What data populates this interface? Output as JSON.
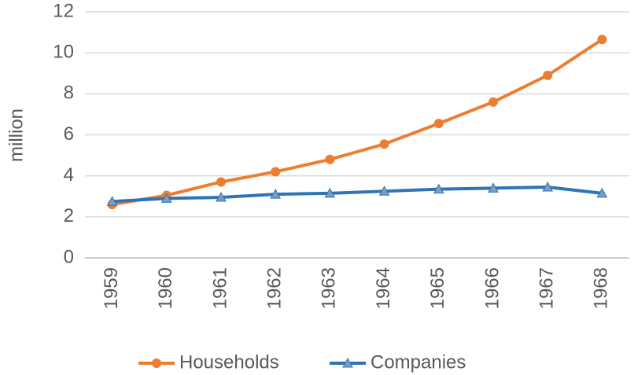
{
  "chart_data": {
    "type": "line",
    "ylabel": "million",
    "categories": [
      "1959",
      "1960",
      "1961",
      "1962",
      "1963",
      "1964",
      "1965",
      "1966",
      "1967",
      "1968"
    ],
    "series": [
      {
        "name": "Households",
        "color": "#ed7d31",
        "marker": "circle",
        "values": [
          2.6,
          3.05,
          3.7,
          4.2,
          4.8,
          5.55,
          6.55,
          7.6,
          8.9,
          10.65
        ]
      },
      {
        "name": "Companies",
        "color": "#2e75b6",
        "marker": "triangle",
        "values": [
          2.75,
          2.9,
          2.95,
          3.1,
          3.15,
          3.25,
          3.35,
          3.4,
          3.45,
          3.15
        ]
      }
    ],
    "ylim": [
      0,
      12
    ],
    "yticks": [
      0,
      2,
      4,
      6,
      8,
      10,
      12
    ],
    "grid": true
  }
}
